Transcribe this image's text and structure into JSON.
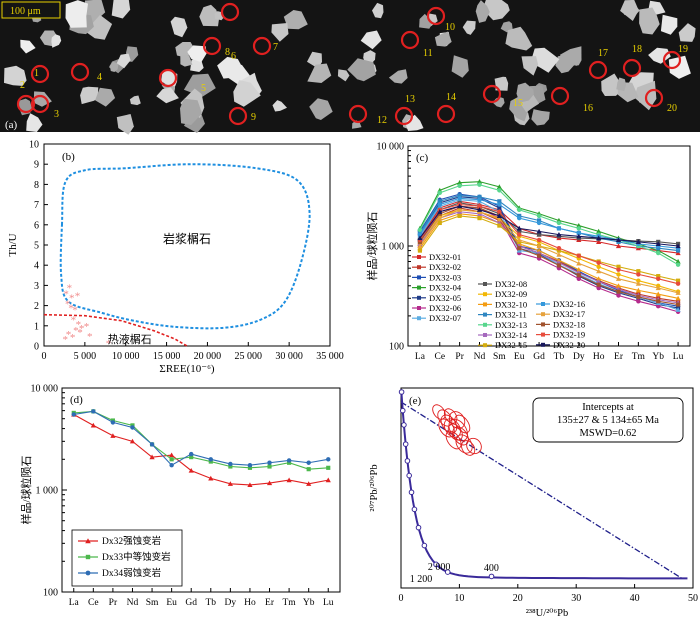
{
  "panel_a": {
    "label": "(a)",
    "scale_bar": "100 μm",
    "spot_numbers": [
      "1",
      "2",
      "3",
      "4",
      "5",
      "6",
      "7",
      "8",
      "9",
      "10",
      "11",
      "12",
      "13",
      "14",
      "15",
      "16",
      "17",
      "18",
      "19",
      "20"
    ],
    "spot_color": "#e02020",
    "number_color": "#e8d000"
  },
  "chart_data": [
    {
      "id": "b",
      "type": "scatter",
      "panel_label": "(b)",
      "xlabel": "ΣREE(10⁻⁶)",
      "ylabel": "Th/U",
      "xlim": [
        0,
        35000
      ],
      "ylim": [
        0,
        10
      ],
      "xticks": [
        "0",
        "5 000",
        "10 000",
        "15 000",
        "20 000",
        "25 000",
        "30 000",
        "35 000"
      ],
      "yticks": [
        "0",
        "1",
        "2",
        "3",
        "4",
        "5",
        "6",
        "7",
        "8",
        "9",
        "10"
      ],
      "region_labels": {
        "magmatic": "岩浆榍石",
        "hydrothermal": "热液榍石"
      },
      "points": [
        [
          2700,
          2.6
        ],
        [
          3100,
          2.9
        ],
        [
          3400,
          2.4
        ],
        [
          2900,
          2.1
        ],
        [
          3300,
          1.9
        ],
        [
          3800,
          1.8
        ],
        [
          4100,
          2.5
        ],
        [
          3600,
          1.3
        ],
        [
          4200,
          1.1
        ],
        [
          4600,
          0.9
        ],
        [
          5200,
          1.0
        ],
        [
          3900,
          0.8
        ],
        [
          3000,
          0.6
        ],
        [
          3500,
          0.45
        ],
        [
          4400,
          0.7
        ],
        [
          5600,
          0.5
        ],
        [
          2600,
          0.35
        ],
        [
          7900,
          0.15
        ]
      ],
      "magmatic_outline": [
        [
          2200,
          6.0
        ],
        [
          2600,
          8.1
        ],
        [
          5000,
          8.7
        ],
        [
          10000,
          8.8
        ],
        [
          18000,
          9.0
        ],
        [
          26000,
          8.8
        ],
        [
          31000,
          8.2
        ],
        [
          32500,
          6.6
        ],
        [
          31500,
          4.2
        ],
        [
          29500,
          2.2
        ],
        [
          26500,
          1.3
        ],
        [
          22000,
          0.9
        ],
        [
          16000,
          0.95
        ],
        [
          11000,
          1.25
        ],
        [
          7000,
          1.65
        ],
        [
          3000,
          2.2
        ],
        [
          2100,
          3.5
        ]
      ],
      "hydrothermal_boundary": [
        [
          0,
          1.55
        ],
        [
          5000,
          1.5
        ],
        [
          9500,
          1.25
        ],
        [
          13500,
          0.75
        ],
        [
          16000,
          0.35
        ],
        [
          17500,
          0.0
        ]
      ],
      "colors": {
        "magmatic": "#1e8fe0",
        "hydrothermal": "#e02020",
        "points": "#f08a8a"
      }
    },
    {
      "id": "c",
      "type": "line",
      "panel_label": "(c)",
      "ylabel": "样品/球粒陨石",
      "yscale": "log",
      "ylim": [
        100,
        10000
      ],
      "yticks": [
        "100",
        "1 000",
        "10 000"
      ],
      "categories": [
        "La",
        "Ce",
        "Pr",
        "Nd",
        "Sm",
        "Eu",
        "Gd",
        "Tb",
        "Dy",
        "Ho",
        "Er",
        "Tm",
        "Yb",
        "Lu"
      ],
      "legend": [
        "DX32-01",
        "DX32-02",
        "DX32-03",
        "DX32-04",
        "DX32-05",
        "DX32-06",
        "DX32-07",
        "DX32-08",
        "DX32-09",
        "DX32-10",
        "DX32-11",
        "DX32-13",
        "DX32-14",
        "DX32-15",
        "DX32-16",
        "DX32-17",
        "DX32-18",
        "DX32-19",
        "DX32-20"
      ],
      "series": [
        {
          "name": "DX32-01",
          "color": "#d62728",
          "values": [
            1200,
            2400,
            2800,
            2600,
            2300,
            1500,
            1300,
            1200,
            1150,
            1100,
            1000,
            950,
            900,
            850
          ]
        },
        {
          "name": "DX32-02",
          "color": "#c0392b",
          "values": [
            1000,
            2000,
            2400,
            2200,
            1800,
            1000,
            850,
            700,
            550,
            450,
            380,
            330,
            300,
            280
          ]
        },
        {
          "name": "DX32-03",
          "color": "#1f4fb4",
          "values": [
            1400,
            2900,
            3300,
            3100,
            2500,
            1000,
            900,
            720,
            560,
            440,
            360,
            310,
            270,
            250
          ]
        },
        {
          "name": "DX32-04",
          "color": "#2ca02c",
          "values": [
            1500,
            3600,
            4300,
            4400,
            3900,
            2400,
            2100,
            1800,
            1600,
            1400,
            1200,
            1050,
            900,
            700
          ]
        },
        {
          "name": "DX32-05",
          "color": "#1f3b88",
          "values": [
            1300,
            2700,
            3100,
            3000,
            2400,
            950,
            830,
            650,
            500,
            400,
            340,
            300,
            260,
            240
          ]
        },
        {
          "name": "DX32-06",
          "color": "#b52a8c",
          "values": [
            1100,
            2200,
            2500,
            2400,
            1900,
            850,
            750,
            600,
            470,
            380,
            320,
            280,
            250,
            220
          ]
        },
        {
          "name": "DX32-07",
          "color": "#5dade2",
          "values": [
            1250,
            2500,
            2900,
            2800,
            2200,
            900,
            850,
            650,
            520,
            420,
            350,
            310,
            270,
            230
          ]
        },
        {
          "name": "DX32-08",
          "color": "#555555",
          "values": [
            1150,
            2300,
            2700,
            2500,
            2100,
            1400,
            1300,
            1250,
            1200,
            1180,
            1150,
            1120,
            1100,
            1050
          ]
        },
        {
          "name": "DX32-09",
          "color": "#f2b705",
          "values": [
            1050,
            2000,
            2300,
            2200,
            1900,
            1250,
            1100,
            900,
            750,
            620,
            520,
            450,
            400,
            350
          ]
        },
        {
          "name": "DX32-10",
          "color": "#f39c12",
          "values": [
            950,
            1800,
            2100,
            2000,
            1700,
            1050,
            900,
            720,
            580,
            470,
            400,
            360,
            330,
            300
          ]
        },
        {
          "name": "DX32-11",
          "color": "#2e86c1",
          "values": [
            1350,
            2800,
            3200,
            3100,
            2800,
            2000,
            1800,
            1500,
            1350,
            1200,
            1100,
            1000,
            950,
            900
          ]
        },
        {
          "name": "DX32-13",
          "color": "#58d68d",
          "values": [
            1450,
            3400,
            4000,
            4100,
            3600,
            2300,
            2000,
            1700,
            1500,
            1300,
            1150,
            1000,
            850,
            650
          ]
        },
        {
          "name": "DX32-14",
          "color": "#a569bd",
          "values": [
            1050,
            1900,
            2200,
            2100,
            1700,
            1000,
            850,
            680,
            540,
            440,
            370,
            320,
            290,
            270
          ]
        },
        {
          "name": "DX32-15",
          "color": "#d4ac0d",
          "values": [
            900,
            1700,
            2000,
            1900,
            1600,
            1100,
            1000,
            900,
            800,
            700,
            620,
            560,
            500,
            450
          ]
        },
        {
          "name": "DX32-16",
          "color": "#3498db",
          "values": [
            1300,
            2600,
            3000,
            2900,
            2600,
            1900,
            1700,
            1500,
            1350,
            1250,
            1150,
            1050,
            1000,
            950
          ]
        },
        {
          "name": "DX32-17",
          "color": "#e6a23c",
          "values": [
            1000,
            1900,
            2300,
            2200,
            1850,
            1150,
            1000,
            820,
            670,
            560,
            470,
            420,
            380,
            340
          ]
        },
        {
          "name": "DX32-18",
          "color": "#a0522d",
          "values": [
            1100,
            2100,
            2500,
            2400,
            2000,
            950,
            800,
            640,
            510,
            410,
            350,
            310,
            280,
            260
          ]
        },
        {
          "name": "DX32-19",
          "color": "#e74c3c",
          "values": [
            1150,
            2300,
            2600,
            2500,
            2200,
            1300,
            1150,
            950,
            800,
            680,
            580,
            520,
            470,
            420
          ]
        },
        {
          "name": "DX32-20",
          "color": "#17175c",
          "values": [
            1200,
            2200,
            2500,
            2300,
            2000,
            1500,
            1400,
            1300,
            1250,
            1200,
            1150,
            1100,
            1050,
            1000
          ]
        }
      ]
    },
    {
      "id": "d",
      "type": "line",
      "panel_label": "(d)",
      "ylabel": "样品/球粒陨石",
      "yscale": "log",
      "ylim": [
        100,
        10000
      ],
      "yticks": [
        "100",
        "1 000",
        "10 000"
      ],
      "categories": [
        "La",
        "Ce",
        "Pr",
        "Nd",
        "Sm",
        "Eu",
        "Gd",
        "Tb",
        "Dy",
        "Ho",
        "Er",
        "Tm",
        "Yb",
        "Lu"
      ],
      "series": [
        {
          "name": "Dx32强蚀变岩",
          "color": "#e02020",
          "values": [
            5500,
            4300,
            3400,
            3000,
            2100,
            2200,
            1550,
            1300,
            1150,
            1120,
            1170,
            1250,
            1150,
            1250
          ]
        },
        {
          "name": "Dx33中等蚀变岩",
          "color": "#4cb84c",
          "values": [
            5700,
            5900,
            4800,
            4300,
            2800,
            2000,
            2100,
            1900,
            1700,
            1650,
            1700,
            1850,
            1600,
            1650
          ]
        },
        {
          "name": "Dx34弱蚀变岩",
          "color": "#2e6db4",
          "values": [
            5500,
            5900,
            4600,
            4100,
            2800,
            1750,
            2250,
            2000,
            1800,
            1750,
            1850,
            1950,
            1850,
            2000
          ]
        }
      ]
    },
    {
      "id": "e",
      "type": "scatter",
      "panel_label": "(e)",
      "xlabel": "²³⁸U/²⁰⁶Pb",
      "ylabel": "²⁰⁷Pb/²⁰⁶Pb",
      "xlim": [
        0,
        50
      ],
      "ylim": [
        0,
        1.0
      ],
      "xticks": [
        "0",
        "10",
        "20",
        "30",
        "40",
        "50"
      ],
      "intercept_text": [
        "Intercepts at",
        "135±27 & 5 134±65 Ma",
        "MSWD=0.62"
      ],
      "concordia_labels": [
        "1 200",
        "2 000",
        "400"
      ],
      "ellipses": [
        [
          6.5,
          0.88,
          0.9,
          0.04
        ],
        [
          7.5,
          0.85,
          1.0,
          0.045
        ],
        [
          8.2,
          0.82,
          1.1,
          0.05
        ],
        [
          8.8,
          0.8,
          1.2,
          0.05
        ],
        [
          9.3,
          0.78,
          1.0,
          0.045
        ],
        [
          9.8,
          0.79,
          1.3,
          0.06
        ],
        [
          10.2,
          0.76,
          1.1,
          0.05
        ],
        [
          9.0,
          0.74,
          1.0,
          0.05
        ],
        [
          10.8,
          0.72,
          1.2,
          0.05
        ],
        [
          11.5,
          0.7,
          1.0,
          0.04
        ],
        [
          8.5,
          0.86,
          0.9,
          0.04
        ],
        [
          7.8,
          0.8,
          1.1,
          0.05
        ],
        [
          10.5,
          0.82,
          1.0,
          0.05
        ],
        [
          9.6,
          0.84,
          1.2,
          0.045
        ],
        [
          12.5,
          0.71,
          1.2,
          0.04
        ]
      ],
      "discordia": [
        [
          0,
          0.93
        ],
        [
          48,
          0.05
        ]
      ],
      "colors": {
        "concordia": "#3a2a9a",
        "discordia": "#1f1f8a",
        "ellipse": "#e02020"
      }
    }
  ]
}
